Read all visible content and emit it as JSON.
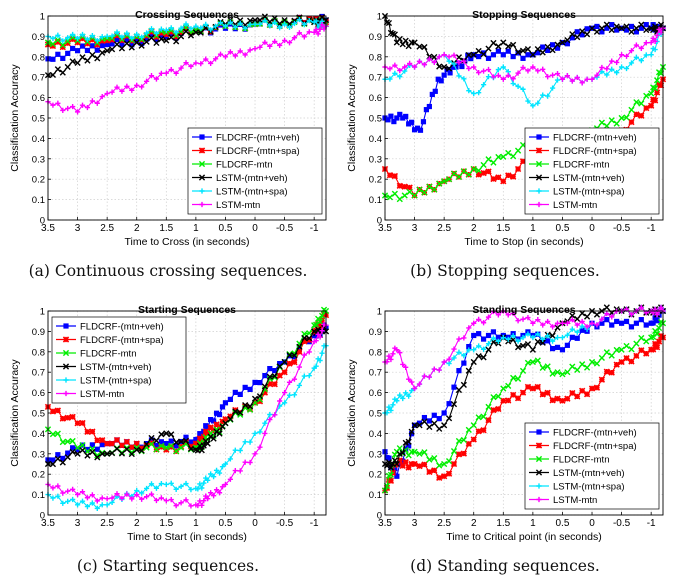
{
  "figure": {
    "captions": [
      "(a) Continuous crossing sequences.",
      "(b) Stopping sequences.",
      "(c) Starting sequences.",
      "(d) Standing sequences."
    ]
  },
  "series_colors": {
    "FLDCRF-(mtn+veh)": "#0000ff",
    "FLDCRF-(mtn+spa)": "#ff0000",
    "FLDCRF-mtn": "#00ee00",
    "LSTM-(mtn+veh)": "#000000",
    "LSTM-(mtn+spa)": "#00e5ff",
    "LSTM-mtn": "#ff00ff"
  },
  "chart_data": [
    {
      "type": "line",
      "title": "Crossing Sequences",
      "xlabel": "Time to Cross (in seconds)",
      "ylabel": "Classification Accuracy",
      "xlim": [
        3.5,
        -1.2
      ],
      "ylim": [
        0,
        1
      ],
      "x_ticks": [
        "3.5",
        "3",
        "2.5",
        "2",
        "1.5",
        "1",
        "0.5",
        "0",
        "-0.5",
        "-1"
      ],
      "y_ticks": [
        "0",
        "0.1",
        "0.2",
        "0.3",
        "0.4",
        "0.5",
        "0.6",
        "0.7",
        "0.8",
        "0.9",
        "1"
      ],
      "grid": true,
      "legend_position": "bottom-right",
      "series": [
        {
          "name": "FLDCRF-(mtn+veh)",
          "x": [
            3.5,
            3.0,
            2.5,
            2.0,
            1.5,
            1.0,
            0.5,
            0.0,
            -0.5,
            -1.0,
            -1.2
          ],
          "y": [
            0.79,
            0.83,
            0.86,
            0.88,
            0.9,
            0.93,
            0.94,
            0.96,
            0.97,
            0.98,
            0.98
          ]
        },
        {
          "name": "FLDCRF-(mtn+spa)",
          "x": [
            3.5,
            3.0,
            2.5,
            2.0,
            1.5,
            1.0,
            0.5,
            0.0,
            -0.5,
            -1.0,
            -1.2
          ],
          "y": [
            0.86,
            0.87,
            0.88,
            0.9,
            0.91,
            0.93,
            0.95,
            0.96,
            0.97,
            0.98,
            0.97
          ]
        },
        {
          "name": "FLDCRF-mtn",
          "x": [
            3.5,
            3.0,
            2.5,
            2.0,
            1.5,
            1.0,
            0.5,
            0.0,
            -0.5,
            -1.0,
            -1.2
          ],
          "y": [
            0.87,
            0.88,
            0.89,
            0.9,
            0.92,
            0.93,
            0.95,
            0.96,
            0.97,
            0.97,
            0.96
          ]
        },
        {
          "name": "LSTM-(mtn+veh)",
          "x": [
            3.5,
            3.0,
            2.5,
            2.0,
            1.5,
            1.0,
            0.5,
            0.0,
            -0.5,
            -1.0,
            -1.2
          ],
          "y": [
            0.71,
            0.77,
            0.83,
            0.87,
            0.88,
            0.92,
            0.96,
            0.98,
            0.98,
            0.97,
            0.98
          ]
        },
        {
          "name": "LSTM-(mtn+spa)",
          "x": [
            3.5,
            3.0,
            2.5,
            2.0,
            1.5,
            1.0,
            0.5,
            0.0,
            -0.5,
            -1.0,
            -1.2
          ],
          "y": [
            0.9,
            0.89,
            0.9,
            0.91,
            0.93,
            0.95,
            0.95,
            0.96,
            0.96,
            0.97,
            0.95
          ]
        },
        {
          "name": "LSTM-mtn",
          "x": [
            3.5,
            3.0,
            2.5,
            2.0,
            1.5,
            1.0,
            0.5,
            0.0,
            -0.5,
            -1.0,
            -1.2
          ],
          "y": [
            0.58,
            0.53,
            0.62,
            0.66,
            0.72,
            0.77,
            0.8,
            0.84,
            0.88,
            0.92,
            0.95
          ]
        }
      ]
    },
    {
      "type": "line",
      "title": "Stopping Sequences",
      "xlabel": "Time to Stop (in seconds)",
      "ylabel": "Classification Accuracy",
      "xlim": [
        3.5,
        -1.2
      ],
      "ylim": [
        0,
        1
      ],
      "x_ticks": [
        "3.5",
        "3",
        "2.5",
        "2",
        "1.5",
        "1",
        "0.5",
        "0",
        "-0.5",
        "-1"
      ],
      "y_ticks": [
        "0",
        "0.1",
        "0.2",
        "0.3",
        "0.4",
        "0.5",
        "0.6",
        "0.7",
        "0.8",
        "0.9",
        "1"
      ],
      "grid": true,
      "legend_position": "bottom-right",
      "series": [
        {
          "name": "FLDCRF-(mtn+veh)",
          "x": [
            3.5,
            3.2,
            2.9,
            2.6,
            2.3,
            2.0,
            1.5,
            1.0,
            0.5,
            0.0,
            -0.5,
            -1.0,
            -1.2
          ],
          "y": [
            0.5,
            0.5,
            0.44,
            0.69,
            0.75,
            0.81,
            0.81,
            0.81,
            0.87,
            0.94,
            0.94,
            0.94,
            0.94
          ]
        },
        {
          "name": "FLDCRF-(mtn+spa)",
          "x": [
            3.5,
            3.0,
            2.5,
            2.0,
            1.5,
            1.0,
            0.5,
            0.0,
            -0.5,
            -1.0,
            -1.2
          ],
          "y": [
            0.25,
            0.12,
            0.19,
            0.25,
            0.19,
            0.31,
            0.37,
            0.31,
            0.44,
            0.56,
            0.69
          ]
        },
        {
          "name": "FLDCRF-mtn",
          "x": [
            3.5,
            3.0,
            2.5,
            2.0,
            1.5,
            1.0,
            0.5,
            0.0,
            -0.5,
            -1.0,
            -1.2
          ],
          "y": [
            0.12,
            0.12,
            0.19,
            0.25,
            0.31,
            0.37,
            0.37,
            0.44,
            0.5,
            0.62,
            0.75
          ]
        },
        {
          "name": "LSTM-(mtn+veh)",
          "x": [
            3.5,
            3.3,
            3.0,
            2.5,
            2.0,
            1.5,
            1.0,
            0.5,
            0.0,
            -0.5,
            -1.0,
            -1.2
          ],
          "y": [
            1.0,
            0.87,
            0.87,
            0.75,
            0.81,
            0.87,
            0.81,
            0.87,
            0.94,
            0.94,
            0.94,
            0.94
          ]
        },
        {
          "name": "LSTM-(mtn+spa)",
          "x": [
            3.5,
            3.0,
            2.5,
            2.0,
            1.5,
            1.0,
            0.5,
            0.0,
            -0.5,
            -1.0,
            -1.2
          ],
          "y": [
            0.69,
            0.75,
            0.81,
            0.62,
            0.75,
            0.56,
            0.69,
            0.69,
            0.75,
            0.81,
            0.94
          ]
        },
        {
          "name": "LSTM-mtn",
          "x": [
            3.5,
            3.0,
            2.5,
            2.0,
            1.5,
            1.0,
            0.5,
            0.0,
            -0.5,
            -1.0,
            -1.2
          ],
          "y": [
            0.75,
            0.75,
            0.81,
            0.75,
            0.69,
            0.75,
            0.69,
            0.69,
            0.81,
            0.87,
            0.94
          ]
        }
      ]
    },
    {
      "type": "line",
      "title": "Starting Sequences",
      "xlabel": "Time to Start (in seconds)",
      "ylabel": "Classification Accuracy",
      "xlim": [
        3.5,
        -1.2
      ],
      "ylim": [
        0,
        1
      ],
      "x_ticks": [
        "3.5",
        "3",
        "2.5",
        "2",
        "1.5",
        "1",
        "0.5",
        "0",
        "-0.5",
        "-1"
      ],
      "y_ticks": [
        "0",
        "0.1",
        "0.2",
        "0.3",
        "0.4",
        "0.5",
        "0.6",
        "0.7",
        "0.8",
        "0.9",
        "1"
      ],
      "grid": true,
      "legend_position": "top-left",
      "series": [
        {
          "name": "FLDCRF-(mtn+veh)",
          "x": [
            3.5,
            3.0,
            2.5,
            2.0,
            1.5,
            1.0,
            0.8,
            0.5,
            0.0,
            -0.5,
            -1.0,
            -1.2
          ],
          "y": [
            0.27,
            0.32,
            0.35,
            0.35,
            0.35,
            0.37,
            0.43,
            0.55,
            0.65,
            0.75,
            0.88,
            0.92
          ]
        },
        {
          "name": "FLDCRF-(mtn+spa)",
          "x": [
            3.5,
            3.0,
            2.5,
            2.0,
            1.5,
            1.0,
            0.8,
            0.5,
            0.0,
            -0.5,
            -1.0,
            -1.2
          ],
          "y": [
            0.53,
            0.45,
            0.35,
            0.35,
            0.32,
            0.35,
            0.4,
            0.47,
            0.55,
            0.7,
            0.9,
            0.98
          ]
        },
        {
          "name": "FLDCRF-mtn",
          "x": [
            3.5,
            3.0,
            2.5,
            2.0,
            1.5,
            1.0,
            0.8,
            0.5,
            0.0,
            -0.5,
            -1.0,
            -1.2
          ],
          "y": [
            0.42,
            0.33,
            0.3,
            0.33,
            0.33,
            0.33,
            0.37,
            0.45,
            0.55,
            0.75,
            0.93,
            1.0
          ]
        },
        {
          "name": "LSTM-(mtn+veh)",
          "x": [
            3.5,
            3.0,
            2.5,
            2.0,
            1.5,
            1.0,
            0.8,
            0.5,
            0.0,
            -0.5,
            -1.0,
            -1.2
          ],
          "y": [
            0.25,
            0.3,
            0.3,
            0.32,
            0.4,
            0.32,
            0.35,
            0.45,
            0.57,
            0.75,
            0.9,
            0.9
          ]
        },
        {
          "name": "LSTM-(mtn+spa)",
          "x": [
            3.5,
            3.0,
            2.5,
            2.0,
            1.5,
            1.0,
            0.8,
            0.5,
            0.0,
            -0.5,
            -1.0,
            -1.2
          ],
          "y": [
            0.1,
            0.05,
            0.05,
            0.12,
            0.15,
            0.13,
            0.17,
            0.25,
            0.4,
            0.55,
            0.72,
            0.83
          ]
        },
        {
          "name": "LSTM-mtn",
          "x": [
            3.5,
            3.0,
            2.5,
            2.0,
            1.5,
            1.0,
            0.8,
            0.5,
            0.0,
            -0.5,
            -1.0,
            -1.2
          ],
          "y": [
            0.15,
            0.1,
            0.08,
            0.1,
            0.07,
            0.05,
            0.08,
            0.15,
            0.3,
            0.6,
            0.85,
            0.93
          ]
        }
      ]
    },
    {
      "type": "line",
      "title": "Standing Sequences",
      "xlabel": "Time to Critical point (in seconds)",
      "ylabel": "Classification Accuracy",
      "xlim": [
        3.5,
        -1.2
      ],
      "ylim": [
        0,
        1
      ],
      "x_ticks": [
        "3.5",
        "3",
        "2.5",
        "2",
        "1.5",
        "1",
        "0.5",
        "0",
        "-0.5",
        "-1"
      ],
      "y_ticks": [
        "0",
        "0.1",
        "0.2",
        "0.3",
        "0.4",
        "0.5",
        "0.6",
        "0.7",
        "0.8",
        "0.9",
        "1"
      ],
      "grid": true,
      "legend_position": "bottom-right",
      "series": [
        {
          "name": "FLDCRF-(mtn+veh)",
          "x": [
            3.5,
            3.3,
            3.0,
            2.5,
            2.0,
            1.5,
            1.0,
            0.5,
            0.0,
            -0.5,
            -1.0,
            -1.2
          ],
          "y": [
            0.31,
            0.19,
            0.44,
            0.5,
            0.88,
            0.88,
            0.88,
            0.81,
            0.94,
            0.94,
            0.94,
            1.0
          ]
        },
        {
          "name": "FLDCRF-(mtn+spa)",
          "x": [
            3.5,
            3.3,
            3.0,
            2.5,
            2.0,
            1.5,
            1.0,
            0.5,
            0.0,
            -0.5,
            -1.0,
            -1.2
          ],
          "y": [
            0.12,
            0.25,
            0.25,
            0.19,
            0.37,
            0.56,
            0.62,
            0.56,
            0.62,
            0.75,
            0.81,
            0.87
          ]
        },
        {
          "name": "FLDCRF-mtn",
          "x": [
            3.5,
            3.3,
            3.0,
            2.5,
            2.0,
            1.5,
            1.0,
            0.5,
            0.0,
            -0.5,
            -1.0,
            -1.2
          ],
          "y": [
            0.12,
            0.31,
            0.31,
            0.25,
            0.44,
            0.62,
            0.75,
            0.69,
            0.75,
            0.81,
            0.87,
            0.94
          ]
        },
        {
          "name": "LSTM-(mtn+veh)",
          "x": [
            3.5,
            3.3,
            3.0,
            2.5,
            2.0,
            1.5,
            1.0,
            0.5,
            0.0,
            -0.5,
            -1.0,
            -1.2
          ],
          "y": [
            0.25,
            0.25,
            0.44,
            0.44,
            0.75,
            0.87,
            0.81,
            0.94,
            1.0,
            1.0,
            1.0,
            1.0
          ]
        },
        {
          "name": "LSTM-(mtn+spa)",
          "x": [
            3.5,
            3.3,
            3.0,
            2.5,
            2.0,
            1.5,
            1.0,
            0.5,
            0.0,
            -0.5,
            -1.0,
            -1.2
          ],
          "y": [
            0.5,
            0.56,
            0.62,
            0.75,
            0.81,
            0.87,
            0.87,
            0.87,
            0.94,
            1.0,
            1.0,
            1.0
          ]
        },
        {
          "name": "LSTM-mtn",
          "x": [
            3.5,
            3.3,
            3.0,
            2.5,
            2.0,
            1.5,
            1.0,
            0.5,
            0.0,
            -0.5,
            -1.0,
            -1.2
          ],
          "y": [
            0.75,
            0.81,
            0.62,
            0.75,
            0.94,
            1.0,
            0.94,
            0.94,
            0.94,
            1.0,
            1.0,
            1.0
          ]
        }
      ]
    }
  ]
}
